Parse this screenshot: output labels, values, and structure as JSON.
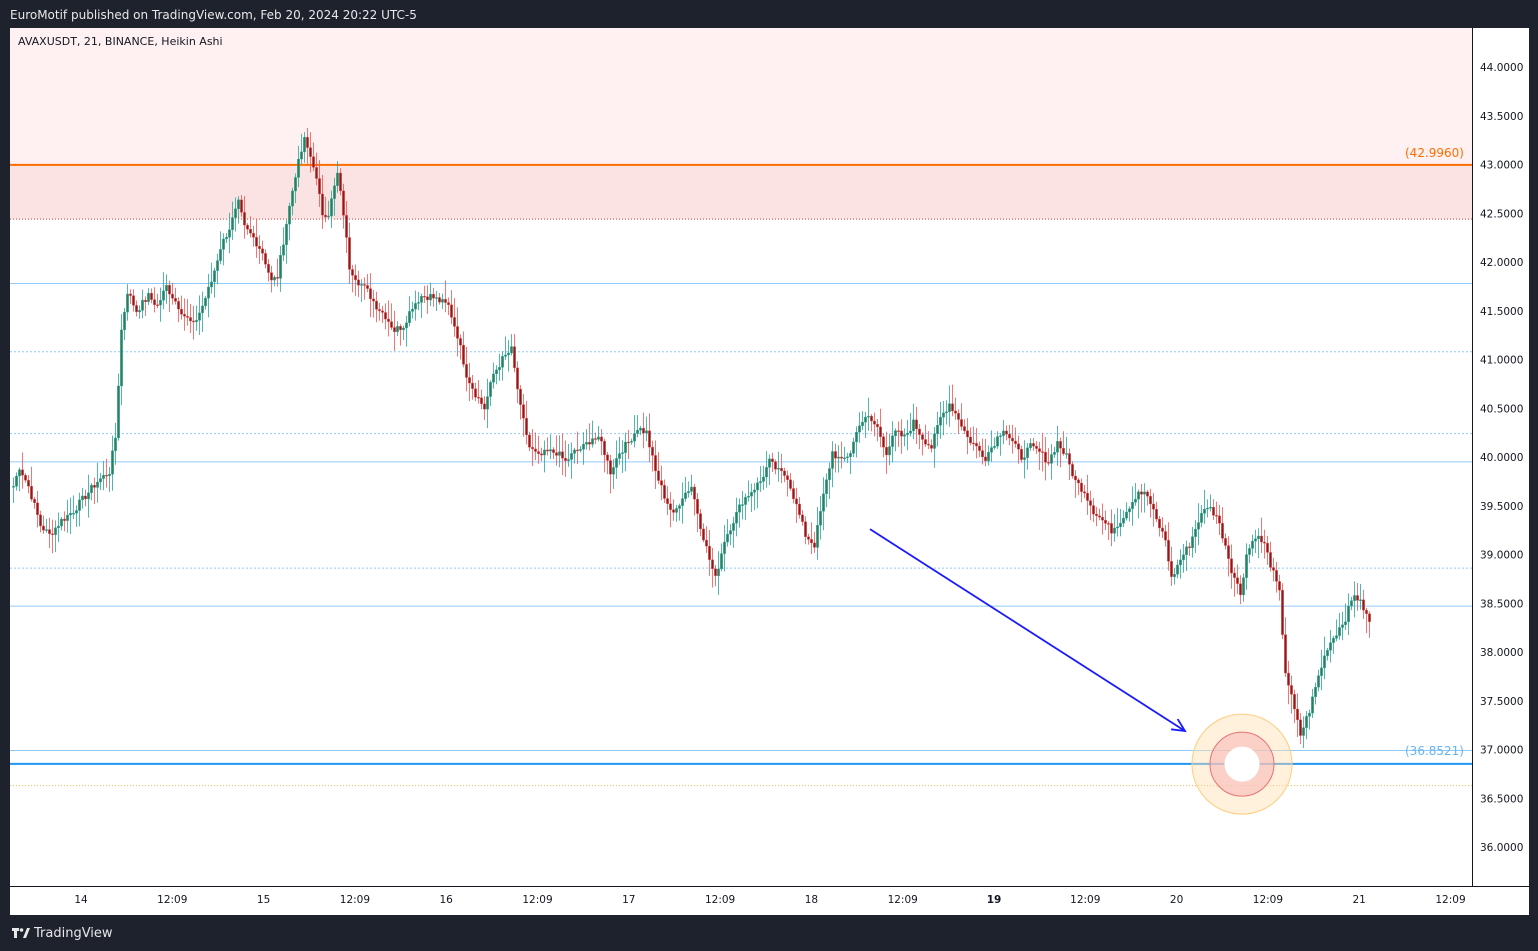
{
  "header": {
    "published_text": "EuroMotif published on TradingView.com, Feb 20, 2024 20:22 UTC-5"
  },
  "footer": {
    "brand": "TradingView",
    "logo_icon": "tradingview-logo-icon"
  },
  "colors": {
    "up": "#26a69a",
    "down": "#ef5350",
    "up_body": "#2e7d5b",
    "down_body": "#8b1a1a",
    "resistance": "#ff6d00",
    "support": "#2196f3",
    "arrow": "#1a1aff",
    "zone": "#ffcdd2"
  },
  "chart_data": {
    "type": "candlestick",
    "symbol_label": "AVAXUSDT, 21, BINANCE, Heikin Ashi",
    "y_range": [
      35.6,
      44.4
    ],
    "y_ticks": [
      "44.0000",
      "43.5000",
      "43.0000",
      "42.5000",
      "42.0000",
      "41.5000",
      "41.0000",
      "40.5000",
      "40.0000",
      "39.5000",
      "39.0000",
      "38.5000",
      "38.0000",
      "37.5000",
      "37.0000",
      "36.5000",
      "36.0000"
    ],
    "x_tick_labels": [
      "14",
      "12:09",
      "15",
      "12:09",
      "16",
      "12:09",
      "17",
      "12:09",
      "18",
      "12:09",
      "19",
      "12:09",
      "20",
      "12:09",
      "21",
      "12:09"
    ],
    "x_tick_bold": [
      false,
      false,
      false,
      false,
      false,
      false,
      false,
      false,
      false,
      false,
      true,
      false,
      false,
      false,
      false,
      false
    ],
    "price_labels": {
      "resistance": "(42.9960)",
      "support": "(36.8521)"
    },
    "levels": {
      "resistance": 42.996,
      "support": 36.8521,
      "resistance_zone": [
        42.44,
        44.4
      ],
      "support_dotted": 36.63,
      "horizontal_lines": [
        41.78,
        40.24,
        39.95,
        38.86,
        38.47,
        36.99
      ],
      "dotted_lines": [
        41.08,
        40.24,
        38.86
      ]
    },
    "anchors": [
      [
        0,
        39.7
      ],
      [
        2,
        39.9
      ],
      [
        5,
        39.7
      ],
      [
        9,
        39.3
      ],
      [
        12,
        39.2
      ],
      [
        16,
        39.35
      ],
      [
        20,
        39.45
      ],
      [
        24,
        39.6
      ],
      [
        28,
        39.75
      ],
      [
        32,
        39.85
      ],
      [
        34,
        40.2
      ],
      [
        36,
        41.3
      ],
      [
        38,
        41.7
      ],
      [
        41,
        41.5
      ],
      [
        45,
        41.65
      ],
      [
        48,
        41.55
      ],
      [
        51,
        41.75
      ],
      [
        54,
        41.6
      ],
      [
        57,
        41.45
      ],
      [
        60,
        41.35
      ],
      [
        63,
        41.55
      ],
      [
        66,
        41.8
      ],
      [
        69,
        42.15
      ],
      [
        72,
        42.35
      ],
      [
        75,
        42.6
      ],
      [
        77,
        42.35
      ],
      [
        80,
        42.25
      ],
      [
        83,
        42.1
      ],
      [
        86,
        41.8
      ],
      [
        88,
        41.85
      ],
      [
        91,
        42.4
      ],
      [
        94,
        42.9
      ],
      [
        97,
        43.25
      ],
      [
        100,
        43.0
      ],
      [
        103,
        42.5
      ],
      [
        105,
        42.5
      ],
      [
        108,
        42.9
      ],
      [
        110,
        42.5
      ],
      [
        112,
        41.95
      ],
      [
        115,
        41.8
      ],
      [
        118,
        41.7
      ],
      [
        121,
        41.55
      ],
      [
        124,
        41.45
      ],
      [
        127,
        41.3
      ],
      [
        130,
        41.35
      ],
      [
        133,
        41.55
      ],
      [
        136,
        41.65
      ],
      [
        139,
        41.65
      ],
      [
        142,
        41.6
      ],
      [
        145,
        41.55
      ],
      [
        148,
        41.25
      ],
      [
        151,
        40.85
      ],
      [
        154,
        40.65
      ],
      [
        157,
        40.5
      ],
      [
        160,
        40.85
      ],
      [
        163,
        41.0
      ],
      [
        166,
        41.1
      ],
      [
        169,
        40.5
      ],
      [
        172,
        40.1
      ],
      [
        175,
        40.0
      ],
      [
        178,
        40.05
      ],
      [
        181,
        40.05
      ],
      [
        184,
        39.95
      ],
      [
        187,
        40.05
      ],
      [
        190,
        40.1
      ],
      [
        193,
        40.2
      ],
      [
        196,
        40.15
      ],
      [
        199,
        39.85
      ],
      [
        202,
        40.05
      ],
      [
        205,
        40.15
      ],
      [
        208,
        40.3
      ],
      [
        211,
        40.25
      ],
      [
        214,
        39.85
      ],
      [
        217,
        39.6
      ],
      [
        220,
        39.4
      ],
      [
        223,
        39.6
      ],
      [
        226,
        39.7
      ],
      [
        229,
        39.3
      ],
      [
        232,
        38.95
      ],
      [
        234,
        38.75
      ],
      [
        237,
        39.15
      ],
      [
        240,
        39.35
      ],
      [
        243,
        39.55
      ],
      [
        246,
        39.65
      ],
      [
        249,
        39.75
      ],
      [
        252,
        39.95
      ],
      [
        255,
        39.85
      ],
      [
        258,
        39.8
      ],
      [
        261,
        39.5
      ],
      [
        264,
        39.2
      ],
      [
        267,
        39.1
      ],
      [
        270,
        39.6
      ],
      [
        273,
        40.05
      ],
      [
        276,
        39.95
      ],
      [
        279,
        40.05
      ],
      [
        282,
        40.35
      ],
      [
        285,
        40.4
      ],
      [
        288,
        40.3
      ],
      [
        291,
        40.05
      ],
      [
        294,
        40.25
      ],
      [
        297,
        40.2
      ],
      [
        300,
        40.35
      ],
      [
        303,
        40.2
      ],
      [
        306,
        40.1
      ],
      [
        309,
        40.4
      ],
      [
        312,
        40.55
      ],
      [
        315,
        40.4
      ],
      [
        318,
        40.2
      ],
      [
        321,
        40.1
      ],
      [
        324,
        40.0
      ],
      [
        327,
        40.15
      ],
      [
        330,
        40.3
      ],
      [
        333,
        40.15
      ],
      [
        336,
        40.0
      ],
      [
        339,
        40.1
      ],
      [
        342,
        40.05
      ],
      [
        345,
        39.95
      ],
      [
        348,
        40.15
      ],
      [
        351,
        40.0
      ],
      [
        354,
        39.75
      ],
      [
        357,
        39.65
      ],
      [
        360,
        39.45
      ],
      [
        363,
        39.35
      ],
      [
        366,
        39.25
      ],
      [
        369,
        39.35
      ],
      [
        372,
        39.5
      ],
      [
        375,
        39.65
      ],
      [
        378,
        39.6
      ],
      [
        381,
        39.35
      ],
      [
        384,
        39.15
      ],
      [
        386,
        38.75
      ],
      [
        389,
        38.95
      ],
      [
        392,
        39.1
      ],
      [
        395,
        39.35
      ],
      [
        398,
        39.5
      ],
      [
        401,
        39.4
      ],
      [
        404,
        39.1
      ],
      [
        406,
        38.85
      ],
      [
        409,
        38.6
      ],
      [
        411,
        39.0
      ],
      [
        414,
        39.2
      ],
      [
        417,
        39.1
      ],
      [
        420,
        38.8
      ],
      [
        422,
        38.6
      ],
      [
        424,
        37.8
      ],
      [
        427,
        37.4
      ],
      [
        429,
        37.15
      ],
      [
        432,
        37.4
      ],
      [
        435,
        37.75
      ],
      [
        438,
        38.05
      ],
      [
        441,
        38.2
      ],
      [
        444,
        38.35
      ],
      [
        447,
        38.6
      ],
      [
        450,
        38.45
      ],
      [
        452,
        38.3
      ]
    ],
    "arrow": {
      "from": [
        286,
        39.26
      ],
      "to": [
        391,
        37.19
      ]
    },
    "highlight_circle": {
      "center": [
        410,
        36.85
      ],
      "label": ""
    }
  }
}
